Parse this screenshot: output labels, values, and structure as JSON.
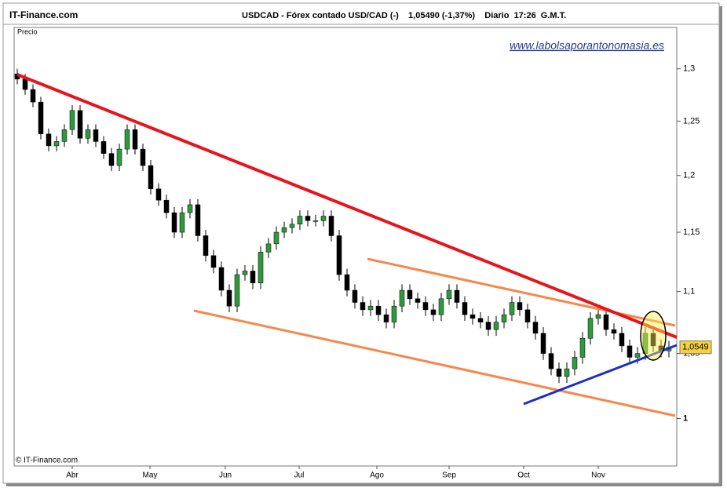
{
  "header": {
    "brand": "IT-Finance.com",
    "title": "USDCAD - Fórex contado USD/CAD (-)    1,05490 (-1,37%)    Diario  17:26  G.M.T."
  },
  "chart_data": {
    "type": "candlestick",
    "y_label": "Precio",
    "watermark": "www.labolsaporantonomasia.es",
    "copyright": "© IT-Finance.com",
    "log_scale": true,
    "up_color": "#2e9a3c",
    "down_color": "#000000",
    "xlim": [
      -0.4,
      84
    ],
    "ylim": [
      0.965,
      1.341
    ],
    "xticks": [
      {
        "value": 7,
        "label": "Abr"
      },
      {
        "value": 16.9,
        "label": "May"
      },
      {
        "value": 26.5,
        "label": "Jun"
      },
      {
        "value": 35.9,
        "label": "Jul"
      },
      {
        "value": 45.8,
        "label": "Ago"
      },
      {
        "value": 55,
        "label": "Sep"
      },
      {
        "value": 64.5,
        "label": "Oct"
      },
      {
        "value": 74,
        "label": "Nov"
      }
    ],
    "yticks": [
      1,
      {
        "value": 1.05,
        "label": "1,05"
      },
      {
        "value": 1.1,
        "label": "1,1"
      },
      {
        "value": 1.15,
        "label": "1,15"
      },
      {
        "value": 1.2,
        "label": "1,2"
      },
      {
        "value": 1.25,
        "label": "1,25"
      },
      {
        "value": 1.3,
        "label": "1,3"
      }
    ],
    "last_price": {
      "value": 1.0549,
      "label": "1,0549"
    },
    "open": [
      1.295,
      1.29,
      1.28,
      1.268,
      1.238,
      1.227,
      1.231,
      1.242,
      1.26,
      1.234,
      1.242,
      1.231,
      1.22,
      1.209,
      1.224,
      1.242,
      1.224,
      1.209,
      1.188,
      1.178,
      1.167,
      1.15,
      1.167,
      1.174,
      1.147,
      1.13,
      1.12,
      1.101,
      1.088,
      1.114,
      1.117,
      1.107,
      1.133,
      1.14,
      1.15,
      1.154,
      1.157,
      1.164,
      1.16,
      1.16,
      1.164,
      1.147,
      1.114,
      1.101,
      1.091,
      1.085,
      1.088,
      1.081,
      1.075,
      1.088,
      1.101,
      1.094,
      1.091,
      1.085,
      1.081,
      1.094,
      1.101,
      1.091,
      1.081,
      1.078,
      1.075,
      1.069,
      1.075,
      1.081,
      1.091,
      1.085,
      1.075,
      1.066,
      1.05,
      1.038,
      1.032,
      1.038,
      1.047,
      1.062,
      1.078,
      1.081,
      1.069,
      1.066,
      1.056,
      1.047,
      1.05,
      1.066,
      1.056,
      1.052
    ],
    "high": [
      1.3,
      1.295,
      1.285,
      1.273,
      1.243,
      1.236,
      1.247,
      1.265,
      1.265,
      1.247,
      1.247,
      1.236,
      1.225,
      1.229,
      1.247,
      1.247,
      1.229,
      1.214,
      1.193,
      1.183,
      1.172,
      1.172,
      1.179,
      1.179,
      1.152,
      1.135,
      1.125,
      1.106,
      1.119,
      1.122,
      1.122,
      1.138,
      1.145,
      1.155,
      1.159,
      1.162,
      1.169,
      1.169,
      1.165,
      1.169,
      1.169,
      1.152,
      1.119,
      1.106,
      1.096,
      1.093,
      1.093,
      1.086,
      1.093,
      1.106,
      1.106,
      1.099,
      1.096,
      1.09,
      1.099,
      1.106,
      1.106,
      1.096,
      1.086,
      1.083,
      1.08,
      1.08,
      1.086,
      1.096,
      1.096,
      1.09,
      1.08,
      1.071,
      1.055,
      1.043,
      1.043,
      1.052,
      1.067,
      1.083,
      1.086,
      1.086,
      1.074,
      1.071,
      1.061,
      1.055,
      1.071,
      1.071,
      1.061,
      1.06
    ],
    "low": [
      1.285,
      1.275,
      1.263,
      1.233,
      1.222,
      1.222,
      1.226,
      1.237,
      1.229,
      1.229,
      1.226,
      1.215,
      1.204,
      1.204,
      1.219,
      1.219,
      1.204,
      1.183,
      1.173,
      1.162,
      1.145,
      1.145,
      1.162,
      1.142,
      1.125,
      1.115,
      1.096,
      1.083,
      1.083,
      1.109,
      1.102,
      1.102,
      1.128,
      1.135,
      1.145,
      1.149,
      1.152,
      1.155,
      1.155,
      1.155,
      1.142,
      1.109,
      1.096,
      1.086,
      1.08,
      1.08,
      1.076,
      1.07,
      1.07,
      1.083,
      1.089,
      1.086,
      1.08,
      1.076,
      1.076,
      1.089,
      1.086,
      1.076,
      1.073,
      1.07,
      1.064,
      1.064,
      1.07,
      1.076,
      1.08,
      1.07,
      1.061,
      1.045,
      1.033,
      1.027,
      1.027,
      1.033,
      1.042,
      1.057,
      1.073,
      1.064,
      1.061,
      1.051,
      1.042,
      1.042,
      1.045,
      1.051,
      1.047,
      1.047
    ],
    "close": [
      1.29,
      1.28,
      1.268,
      1.238,
      1.227,
      1.231,
      1.242,
      1.26,
      1.234,
      1.242,
      1.231,
      1.22,
      1.209,
      1.224,
      1.242,
      1.224,
      1.209,
      1.188,
      1.178,
      1.167,
      1.15,
      1.167,
      1.174,
      1.147,
      1.13,
      1.12,
      1.101,
      1.088,
      1.114,
      1.117,
      1.107,
      1.133,
      1.14,
      1.15,
      1.154,
      1.157,
      1.164,
      1.16,
      1.16,
      1.164,
      1.147,
      1.114,
      1.101,
      1.091,
      1.085,
      1.088,
      1.081,
      1.075,
      1.088,
      1.101,
      1.094,
      1.091,
      1.085,
      1.081,
      1.094,
      1.101,
      1.091,
      1.081,
      1.078,
      1.075,
      1.069,
      1.075,
      1.081,
      1.091,
      1.085,
      1.075,
      1.066,
      1.05,
      1.038,
      1.032,
      1.038,
      1.047,
      1.062,
      1.078,
      1.081,
      1.069,
      1.066,
      1.056,
      1.047,
      1.05,
      1.066,
      1.056,
      1.052,
      1.0549
    ]
  }
}
